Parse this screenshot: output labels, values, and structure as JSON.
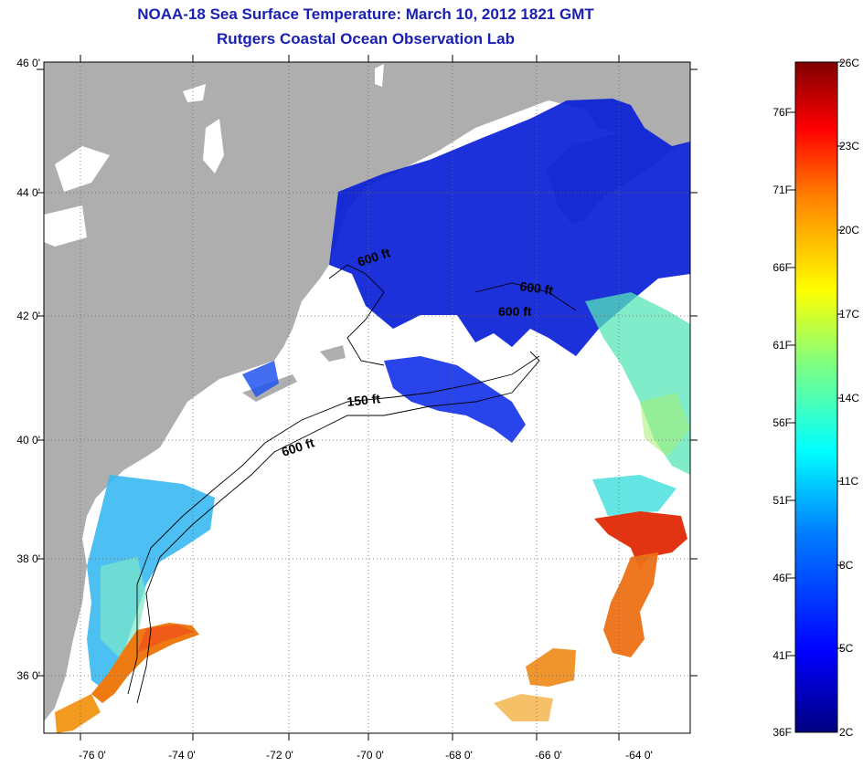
{
  "title": {
    "line1": "NOAA-18 Sea Surface Temperature:  March 10, 2012 1821 GMT",
    "line2": "Rutgers Coastal Ocean Observation Lab"
  },
  "map": {
    "lat_labels": [
      "46 0'",
      "44 0'",
      "42 0'",
      "40 0'",
      "38 0'",
      "36 0'"
    ],
    "lon_labels": [
      "-76 0'",
      "-74 0'",
      "-72 0'",
      "-70 0'",
      "-68 0'",
      "-66 0'",
      "-64 0'"
    ],
    "contour_labels": [
      "600 ft",
      "600 ft",
      "600 ft",
      "150 ft",
      "600 ft"
    ],
    "colors": {
      "land": "#aeaeae",
      "water_no_data": "#ffffff",
      "cold": "#0a1fd8",
      "warm": "#e8401a"
    }
  },
  "colorbar": {
    "fahrenheit": [
      "76F",
      "71F",
      "66F",
      "61F",
      "56F",
      "51F",
      "46F",
      "41F",
      "36F"
    ],
    "celsius": [
      "26C",
      "23C",
      "20C",
      "17C",
      "14C",
      "11C",
      "8C",
      "5C",
      "2C"
    ],
    "stops": [
      "#00007f",
      "#0000ff",
      "#0080ff",
      "#00ffff",
      "#80ff80",
      "#ffff00",
      "#ff8000",
      "#ff0000",
      "#800000"
    ]
  }
}
